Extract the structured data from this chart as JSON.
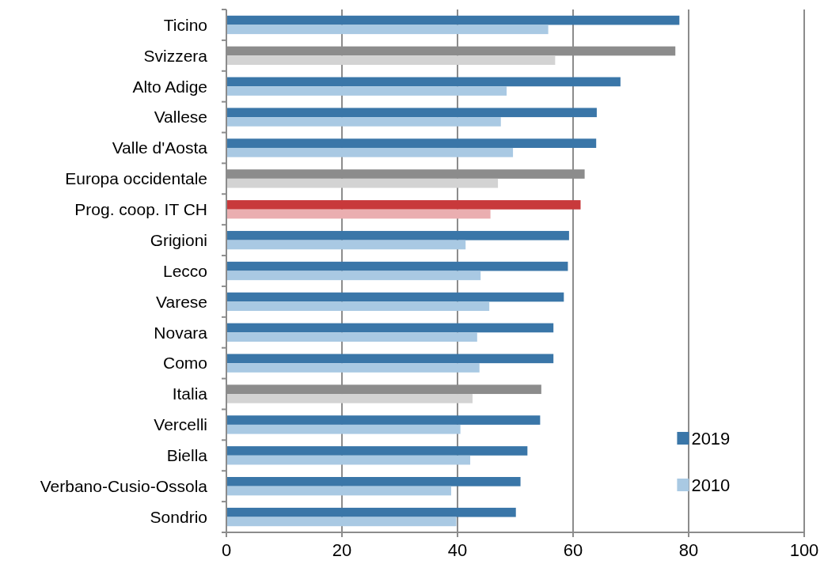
{
  "chart_data": {
    "type": "bar",
    "orientation": "horizontal",
    "categories": [
      "Ticino",
      "Svizzera",
      "Alto Adige",
      "Vallese",
      "Valle d'Aosta",
      "Europa occidentale",
      "Prog. coop. IT CH",
      "Grigioni",
      "Lecco",
      "Varese",
      "Novara",
      "Como",
      "Italia",
      "Vercelli",
      "Biella",
      "Verbano-Cusio-Ossola",
      "Sondrio"
    ],
    "series": [
      {
        "name": "2019",
        "color": "#3a76a8",
        "colors": [
          "#3a76a8",
          "#8c8c8c",
          "#3a76a8",
          "#3a76a8",
          "#3a76a8",
          "#8c8c8c",
          "#c8393b",
          "#3a76a8",
          "#3a76a8",
          "#3a76a8",
          "#3a76a8",
          "#3a76a8",
          "#8c8c8c",
          "#3a76a8",
          "#3a76a8",
          "#3a76a8",
          "#3a76a8"
        ],
        "values": [
          78.4,
          77.7,
          68.2,
          64.1,
          64.0,
          62.0,
          61.3,
          59.3,
          59.1,
          58.4,
          56.6,
          56.6,
          54.5,
          54.3,
          52.1,
          50.9,
          50.1
        ]
      },
      {
        "name": "2010",
        "color": "#a9c9e3",
        "colors": [
          "#a9c9e3",
          "#d3d3d3",
          "#a9c9e3",
          "#a9c9e3",
          "#a9c9e3",
          "#d3d3d3",
          "#eaaeb0",
          "#a9c9e3",
          "#a9c9e3",
          "#a9c9e3",
          "#a9c9e3",
          "#a9c9e3",
          "#d3d3d3",
          "#a9c9e3",
          "#a9c9e3",
          "#a9c9e3",
          "#a9c9e3"
        ],
        "values": [
          55.7,
          56.9,
          48.5,
          47.5,
          49.6,
          47.0,
          45.7,
          41.4,
          44.0,
          45.5,
          43.4,
          43.8,
          42.6,
          40.5,
          42.2,
          38.9,
          39.8
        ]
      }
    ],
    "xlim": [
      0,
      100
    ],
    "xticks": [
      0,
      20,
      40,
      60,
      80,
      100
    ],
    "grid": "x",
    "legend": "bottom right"
  }
}
